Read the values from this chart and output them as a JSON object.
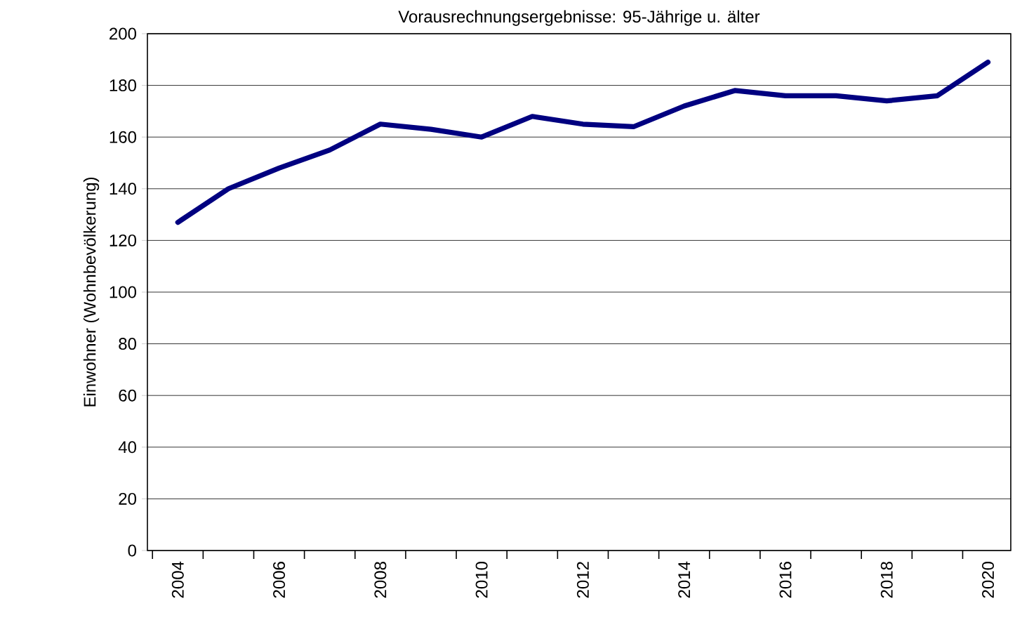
{
  "chart_data": {
    "type": "line",
    "title": "Vorausrechnungsergebnisse: 95-Jährige u. älter",
    "ylabel": "Einwohner (Wohnbevölkerung)",
    "categories": [
      "2004",
      null,
      "2006",
      null,
      "2008",
      null,
      "2010",
      null,
      "2012",
      null,
      "2014",
      null,
      "2016",
      null,
      "2018",
      null,
      "2020"
    ],
    "series": [
      {
        "color": "#000080",
        "values": [
          127,
          140,
          148,
          155,
          165,
          163,
          160,
          168,
          165,
          164,
          172,
          178,
          176,
          176,
          174,
          176,
          189
        ]
      }
    ],
    "ylim": [
      0,
      200
    ],
    "yticks": [
      0,
      20,
      40,
      60,
      80,
      100,
      120,
      140,
      160,
      180,
      200
    ],
    "grid": "y",
    "marker": "none",
    "line_style": "solid"
  }
}
